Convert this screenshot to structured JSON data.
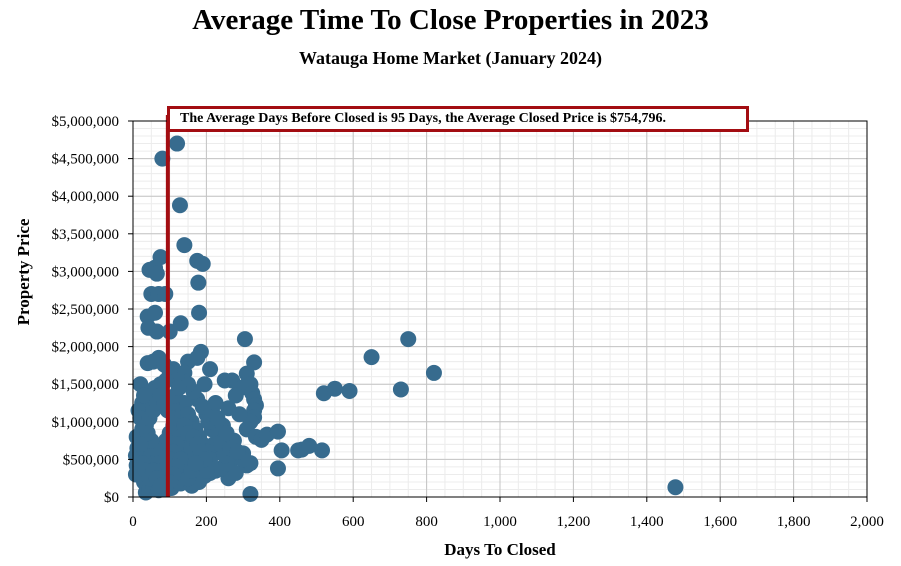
{
  "chart_data": {
    "type": "scatter",
    "title": "Average Time To Close Properties in 2023",
    "subtitle": "Watauga Home Market (January 2024)",
    "xlabel": "Days To Closed",
    "ylabel": "Property Price",
    "xlim": [
      0,
      2000
    ],
    "ylim": [
      0,
      5000000
    ],
    "x_ticks": [
      0,
      200,
      400,
      600,
      800,
      1000,
      1200,
      1400,
      1600,
      1800,
      2000
    ],
    "x_tick_labels": [
      "0",
      "200",
      "400",
      "600",
      "800",
      "1,000",
      "1,200",
      "1,400",
      "1,600",
      "1,800",
      "2,000"
    ],
    "y_ticks": [
      0,
      500000,
      1000000,
      1500000,
      2000000,
      2500000,
      3000000,
      3500000,
      4000000,
      4500000,
      5000000
    ],
    "y_tick_labels": [
      "$0",
      "$500,000",
      "$1,000,000",
      "$1,500,000",
      "$2,000,000",
      "$2,500,000",
      "$3,000,000",
      "$3,500,000",
      "$4,000,000",
      "$4,500,000",
      "$5,000,000"
    ],
    "grid": true,
    "point_color": "#376b8e",
    "reference_line": {
      "x": 95,
      "color": "#a30d12"
    },
    "annotation": "The Average Days Before Closed is 95 Days, the Average Closed Price is $754,796.",
    "points": [
      [
        120,
        4700000
      ],
      [
        80,
        4500000
      ],
      [
        128,
        3880000
      ],
      [
        140,
        3350000
      ],
      [
        75,
        3190000
      ],
      [
        175,
        3140000
      ],
      [
        190,
        3100000
      ],
      [
        45,
        3020000
      ],
      [
        60,
        3050000
      ],
      [
        65,
        2970000
      ],
      [
        178,
        2850000
      ],
      [
        50,
        2700000
      ],
      [
        70,
        2700000
      ],
      [
        88,
        2700000
      ],
      [
        40,
        2400000
      ],
      [
        60,
        2450000
      ],
      [
        180,
        2450000
      ],
      [
        130,
        2310000
      ],
      [
        42,
        2250000
      ],
      [
        65,
        2200000
      ],
      [
        100,
        2200000
      ],
      [
        305,
        2100000
      ],
      [
        185,
        1930000
      ],
      [
        150,
        1800000
      ],
      [
        175,
        1850000
      ],
      [
        210,
        1700000
      ],
      [
        70,
        1850000
      ],
      [
        40,
        1780000
      ],
      [
        55,
        1800000
      ],
      [
        85,
        1760000
      ],
      [
        110,
        1700000
      ],
      [
        140,
        1650000
      ],
      [
        195,
        1500000
      ],
      [
        250,
        1550000
      ],
      [
        270,
        1550000
      ],
      [
        310,
        1640000
      ],
      [
        330,
        1790000
      ],
      [
        320,
        1500000
      ],
      [
        300,
        1460000
      ],
      [
        325,
        1380000
      ],
      [
        330,
        1300000
      ],
      [
        335,
        1220000
      ],
      [
        330,
        1150000
      ],
      [
        330,
        1060000
      ],
      [
        320,
        1000000
      ],
      [
        290,
        1100000
      ],
      [
        260,
        1180000
      ],
      [
        280,
        1350000
      ],
      [
        310,
        900000
      ],
      [
        335,
        800000
      ],
      [
        350,
        760000
      ],
      [
        365,
        830000
      ],
      [
        395,
        870000
      ],
      [
        300,
        580000
      ],
      [
        270,
        500000
      ],
      [
        310,
        420000
      ],
      [
        320,
        450000
      ],
      [
        260,
        250000
      ],
      [
        280,
        320000
      ],
      [
        300,
        500000
      ],
      [
        320,
        40000
      ],
      [
        395,
        380000
      ],
      [
        405,
        620000
      ],
      [
        450,
        620000
      ],
      [
        460,
        630000
      ],
      [
        480,
        680000
      ],
      [
        515,
        620000
      ],
      [
        520,
        1380000
      ],
      [
        550,
        1440000
      ],
      [
        590,
        1410000
      ],
      [
        650,
        1860000
      ],
      [
        730,
        1430000
      ],
      [
        750,
        2100000
      ],
      [
        820,
        1650000
      ],
      [
        1478,
        130000
      ],
      [
        20,
        1500000
      ],
      [
        25,
        1250000
      ],
      [
        15,
        1150000
      ],
      [
        10,
        800000
      ],
      [
        12,
        650000
      ],
      [
        8,
        550000
      ],
      [
        10,
        420000
      ],
      [
        8,
        300000
      ],
      [
        30,
        200000
      ],
      [
        35,
        60000
      ],
      [
        45,
        100000
      ],
      [
        55,
        150000
      ],
      [
        70,
        90000
      ],
      [
        80,
        200000
      ],
      [
        95,
        300000
      ],
      [
        105,
        120000
      ],
      [
        115,
        250000
      ],
      [
        130,
        180000
      ],
      [
        145,
        400000
      ],
      [
        160,
        150000
      ],
      [
        165,
        300000
      ],
      [
        180,
        200000
      ],
      [
        195,
        280000
      ],
      [
        210,
        320000
      ],
      [
        225,
        350000
      ],
      [
        240,
        380000
      ],
      [
        255,
        450000
      ],
      [
        230,
        600000
      ],
      [
        220,
        700000
      ],
      [
        235,
        800000
      ],
      [
        215,
        900000
      ],
      [
        205,
        1000000
      ],
      [
        200,
        1100000
      ],
      [
        190,
        1200000
      ],
      [
        175,
        1300000
      ],
      [
        165,
        1400000
      ],
      [
        150,
        1500000
      ],
      [
        135,
        1550000
      ],
      [
        120,
        1600000
      ],
      [
        100,
        1650000
      ],
      [
        90,
        1550000
      ],
      [
        75,
        1500000
      ],
      [
        60,
        1450000
      ],
      [
        45,
        1400000
      ],
      [
        30,
        1350000
      ],
      [
        20,
        1050000
      ],
      [
        25,
        900000
      ],
      [
        30,
        750000
      ],
      [
        40,
        650000
      ],
      [
        50,
        550000
      ],
      [
        60,
        450000
      ],
      [
        70,
        350000
      ],
      [
        80,
        650000
      ],
      [
        90,
        750000
      ],
      [
        100,
        850000
      ],
      [
        110,
        950000
      ],
      [
        120,
        1050000
      ],
      [
        130,
        1150000
      ],
      [
        140,
        1250000
      ],
      [
        150,
        1100000
      ],
      [
        160,
        1000000
      ],
      [
        170,
        900000
      ],
      [
        180,
        800000
      ],
      [
        190,
        700000
      ],
      [
        200,
        600000
      ],
      [
        210,
        500000
      ],
      [
        150,
        600000
      ],
      [
        140,
        700000
      ],
      [
        130,
        800000
      ],
      [
        120,
        700000
      ],
      [
        110,
        600000
      ],
      [
        100,
        500000
      ],
      [
        90,
        400000
      ],
      [
        80,
        450000
      ],
      [
        70,
        550000
      ],
      [
        60,
        650000
      ],
      [
        50,
        750000
      ],
      [
        40,
        850000
      ],
      [
        35,
        950000
      ],
      [
        45,
        1050000
      ],
      [
        55,
        1150000
      ],
      [
        65,
        1250000
      ],
      [
        75,
        1350000
      ],
      [
        85,
        1250000
      ],
      [
        95,
        1150000
      ],
      [
        105,
        1250000
      ],
      [
        115,
        1350000
      ],
      [
        125,
        1450000
      ],
      [
        160,
        650000
      ],
      [
        170,
        550000
      ],
      [
        180,
        450000
      ],
      [
        190,
        400000
      ],
      [
        200,
        350000
      ],
      [
        240,
        700000
      ],
      [
        250,
        550000
      ],
      [
        265,
        650000
      ],
      [
        275,
        750000
      ],
      [
        285,
        600000
      ],
      [
        245,
        950000
      ],
      [
        230,
        1050000
      ],
      [
        215,
        1150000
      ],
      [
        225,
        1250000
      ],
      [
        255,
        850000
      ],
      [
        140,
        950000
      ],
      [
        150,
        850000
      ],
      [
        165,
        800000
      ],
      [
        175,
        700000
      ],
      [
        185,
        600000
      ],
      [
        195,
        500000
      ],
      [
        130,
        500000
      ],
      [
        120,
        400000
      ],
      [
        110,
        300000
      ],
      [
        100,
        200000
      ],
      [
        90,
        100000
      ],
      [
        150,
        250000
      ],
      [
        160,
        350000
      ],
      [
        170,
        450000
      ],
      [
        20,
        700000
      ],
      [
        15,
        500000
      ],
      [
        25,
        450000
      ],
      [
        35,
        350000
      ],
      [
        45,
        250000
      ],
      [
        55,
        350000
      ],
      [
        65,
        250000
      ],
      [
        75,
        150000
      ]
    ]
  }
}
